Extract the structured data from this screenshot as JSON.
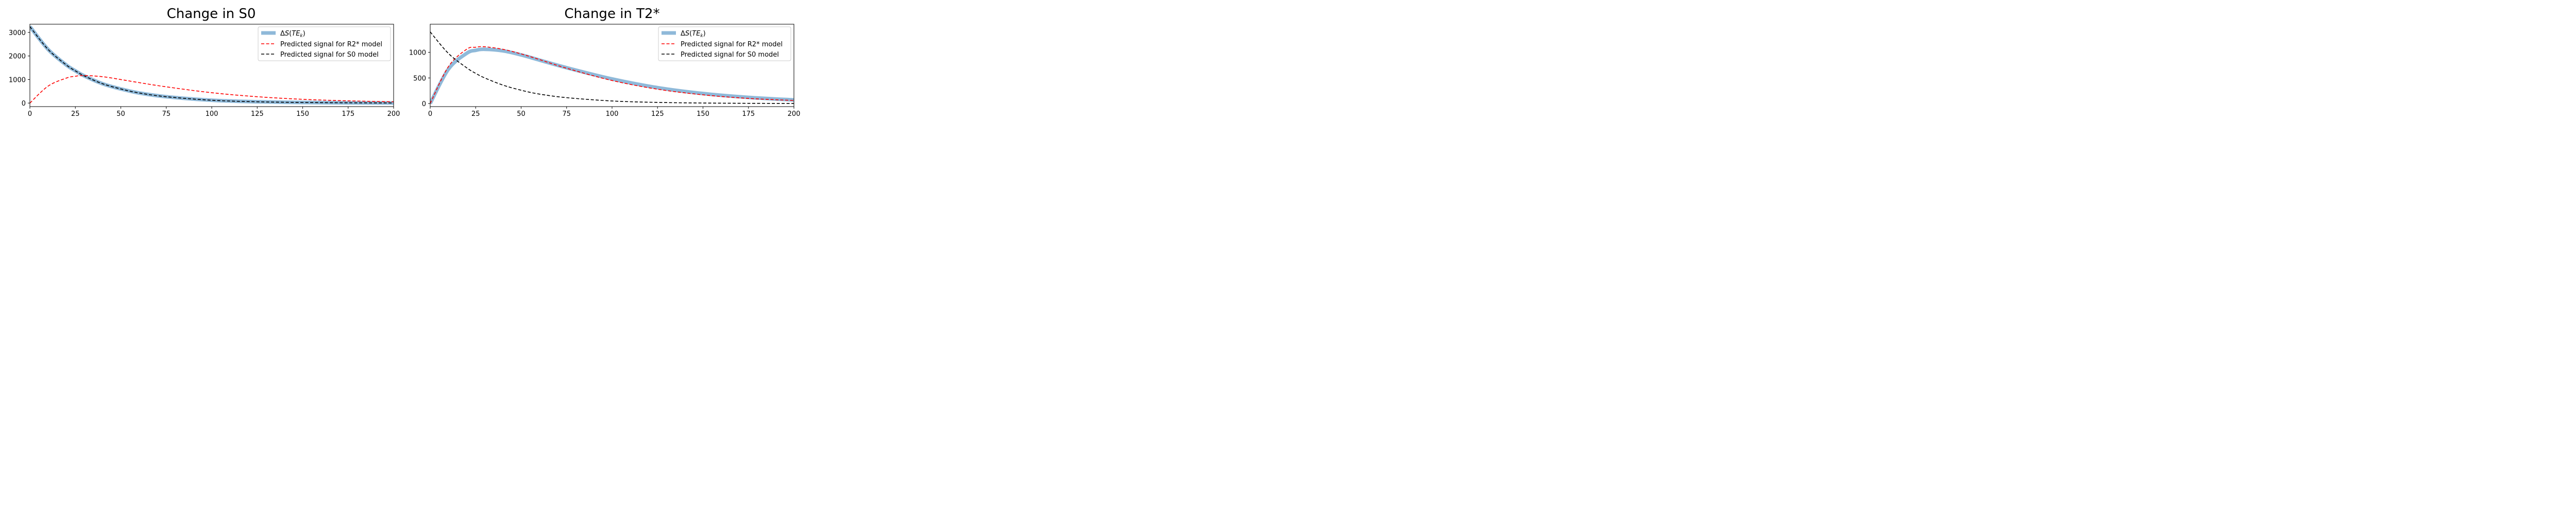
{
  "chart_data": [
    {
      "type": "line",
      "title": "Change in S0",
      "xlabel": "",
      "ylabel": "",
      "xlim": [
        0,
        200
      ],
      "ylim": [
        -150,
        3350
      ],
      "xticks": [
        0,
        25,
        50,
        75,
        100,
        125,
        150,
        175,
        200
      ],
      "yticks": [
        0,
        1000,
        2000,
        3000
      ],
      "grid": false,
      "legend_position": "top-right",
      "x": [
        0,
        10,
        20,
        25,
        30,
        40,
        50,
        60,
        75,
        100,
        125,
        150,
        175,
        200
      ],
      "series": [
        {
          "name": "ΔS(TE_k)",
          "legend_label_parts": [
            "Δ",
            "S",
            "(",
            "TE",
            "k",
            ")"
          ],
          "color": "#8fb9d9",
          "style": "solid-thick",
          "values": [
            3250,
            2280,
            1620,
            1370,
            1150,
            820,
            600,
            430,
            270,
            120,
            55,
            25,
            12,
            5
          ]
        },
        {
          "name": "Predicted signal for R2* model",
          "color": "#ff0000",
          "style": "dashed",
          "values": [
            0,
            720,
            1060,
            1140,
            1170,
            1120,
            1000,
            870,
            690,
            440,
            270,
            160,
            95,
            55
          ]
        },
        {
          "name": "Predicted signal for S0 model",
          "color": "#000000",
          "style": "dashed",
          "values": [
            3250,
            2280,
            1620,
            1370,
            1150,
            820,
            600,
            430,
            270,
            120,
            55,
            25,
            12,
            5
          ]
        }
      ]
    },
    {
      "type": "line",
      "title": "Change in T2*",
      "xlabel": "",
      "ylabel": "",
      "xlim": [
        0,
        200
      ],
      "ylim": [
        -60,
        1550
      ],
      "xticks": [
        0,
        25,
        50,
        75,
        100,
        125,
        150,
        175,
        200
      ],
      "yticks": [
        0,
        500,
        1000
      ],
      "grid": false,
      "legend_position": "top-right",
      "x": [
        0,
        10,
        20,
        25,
        30,
        40,
        50,
        60,
        75,
        100,
        125,
        150,
        175,
        200
      ],
      "series": [
        {
          "name": "ΔS(TE_k)",
          "legend_label_parts": [
            "Δ",
            "S",
            "(",
            "TE",
            "k",
            ")"
          ],
          "color": "#8fb9d9",
          "style": "solid-thick",
          "values": [
            0,
            670,
            980,
            1040,
            1060,
            1030,
            950,
            850,
            700,
            480,
            310,
            195,
            120,
            70
          ]
        },
        {
          "name": "Predicted signal for R2* model",
          "color": "#ff0000",
          "style": "dashed",
          "values": [
            0,
            720,
            1060,
            1100,
            1110,
            1060,
            970,
            860,
            690,
            450,
            280,
            170,
            100,
            60
          ]
        },
        {
          "name": "Predicted signal for S0 model",
          "color": "#000000",
          "style": "dashed",
          "values": [
            1400,
            980,
            700,
            590,
            500,
            360,
            260,
            185,
            115,
            50,
            22,
            10,
            4,
            2
          ]
        }
      ]
    }
  ]
}
